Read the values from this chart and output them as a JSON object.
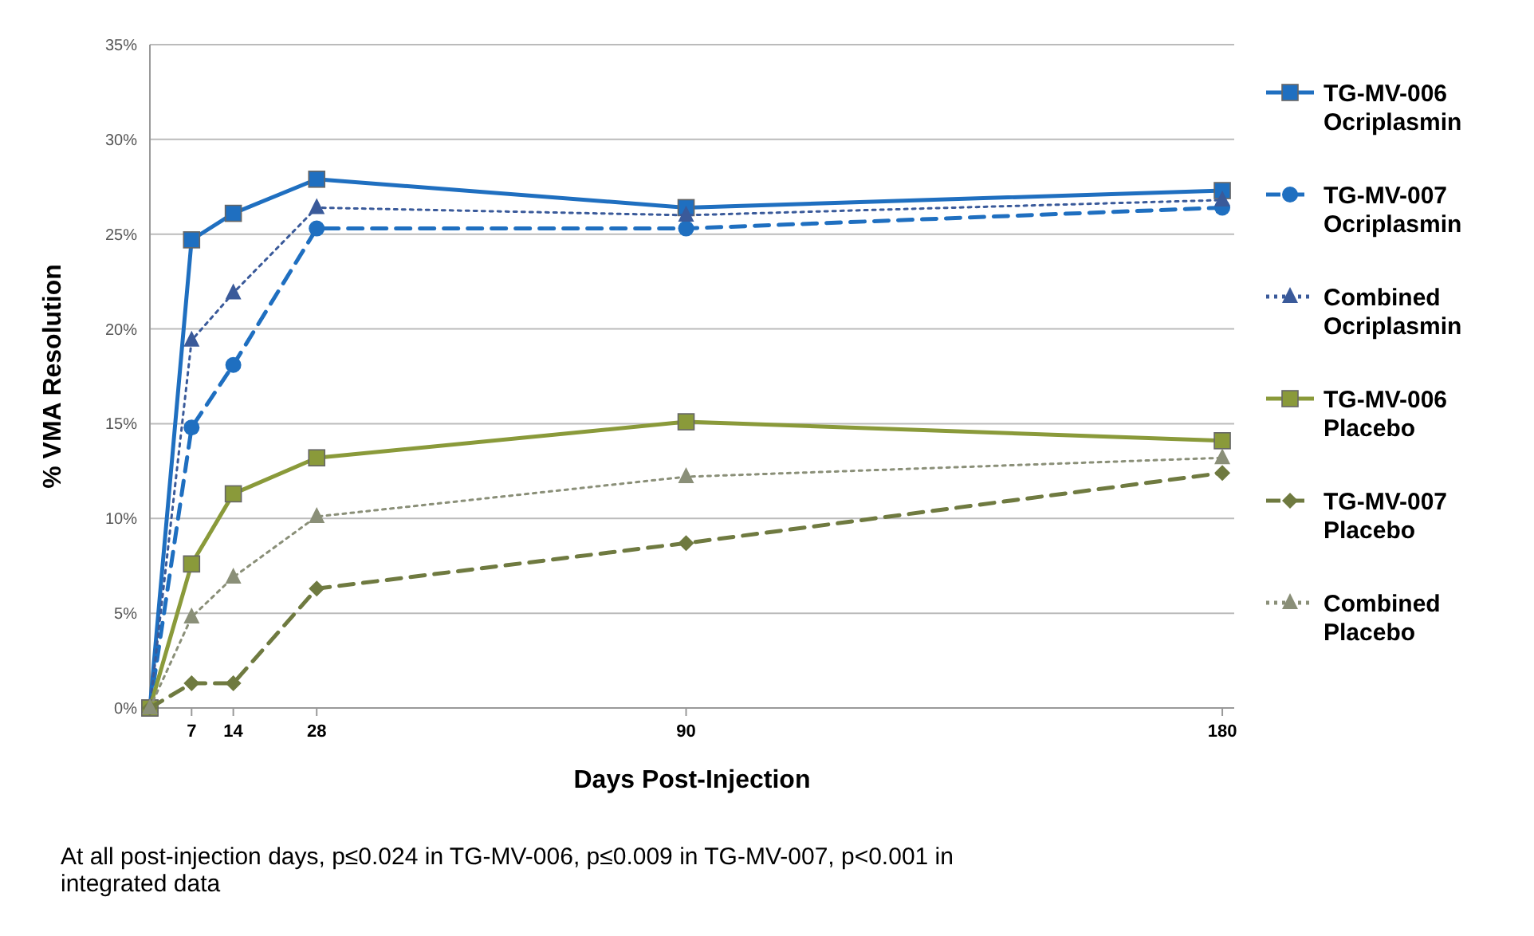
{
  "chart_data": {
    "type": "line",
    "xlabel": "Days Post-Injection",
    "ylabel": "% VMA Resolution",
    "x": [
      0,
      7,
      14,
      28,
      90,
      180
    ],
    "xlim": [
      0,
      182
    ],
    "xticks": [
      7,
      14,
      28,
      90,
      180
    ],
    "ylim": [
      0,
      35
    ],
    "yticks": [
      {
        "value": 0,
        "label": "0%"
      },
      {
        "value": 5,
        "label": "5%"
      },
      {
        "value": 10,
        "label": "10%"
      },
      {
        "value": 15,
        "label": "15%"
      },
      {
        "value": 20,
        "label": "20%"
      },
      {
        "value": 25,
        "label": "25%"
      },
      {
        "value": 30,
        "label": "30%"
      },
      {
        "value": 35,
        "label": "35%"
      }
    ],
    "grid": "y",
    "legend": "right",
    "series": [
      {
        "name": "TG-MV-006 Ocriplasmin",
        "color": "#1f6fc0",
        "marker": "square",
        "line_style": "solid",
        "values": [
          0,
          24.7,
          26.1,
          27.9,
          26.4,
          27.3
        ]
      },
      {
        "name": "TG-MV-007 Ocriplasmin",
        "color": "#1f6fc0",
        "marker": "circle",
        "line_style": "dashed",
        "values": [
          0,
          14.8,
          18.1,
          25.3,
          25.3,
          26.4
        ]
      },
      {
        "name": "Combined Ocriplasmin",
        "color": "#3a5a9a",
        "marker": "triangle",
        "line_style": "dotted",
        "values": [
          0,
          19.4,
          21.9,
          26.4,
          26.0,
          26.8
        ]
      },
      {
        "name": "TG-MV-006 Placebo",
        "color": "#8a9a3a",
        "marker": "square",
        "line_style": "solid",
        "values": [
          0,
          7.6,
          11.3,
          13.2,
          15.1,
          14.1
        ]
      },
      {
        "name": "TG-MV-007 Placebo",
        "color": "#6f7a40",
        "marker": "diamond",
        "line_style": "dashed",
        "values": [
          0,
          1.3,
          1.3,
          6.3,
          8.7,
          12.4
        ]
      },
      {
        "name": "Combined Placebo",
        "color": "#8a8f78",
        "marker": "triangle",
        "line_style": "dotted",
        "values": [
          0,
          4.8,
          6.9,
          10.1,
          12.2,
          13.2
        ]
      }
    ],
    "annotations": [
      "At all post-injection days, p≤0.024 in TG-MV-006, p≤0.009 in TG-MV-007, p<0.001 in integrated data"
    ]
  }
}
